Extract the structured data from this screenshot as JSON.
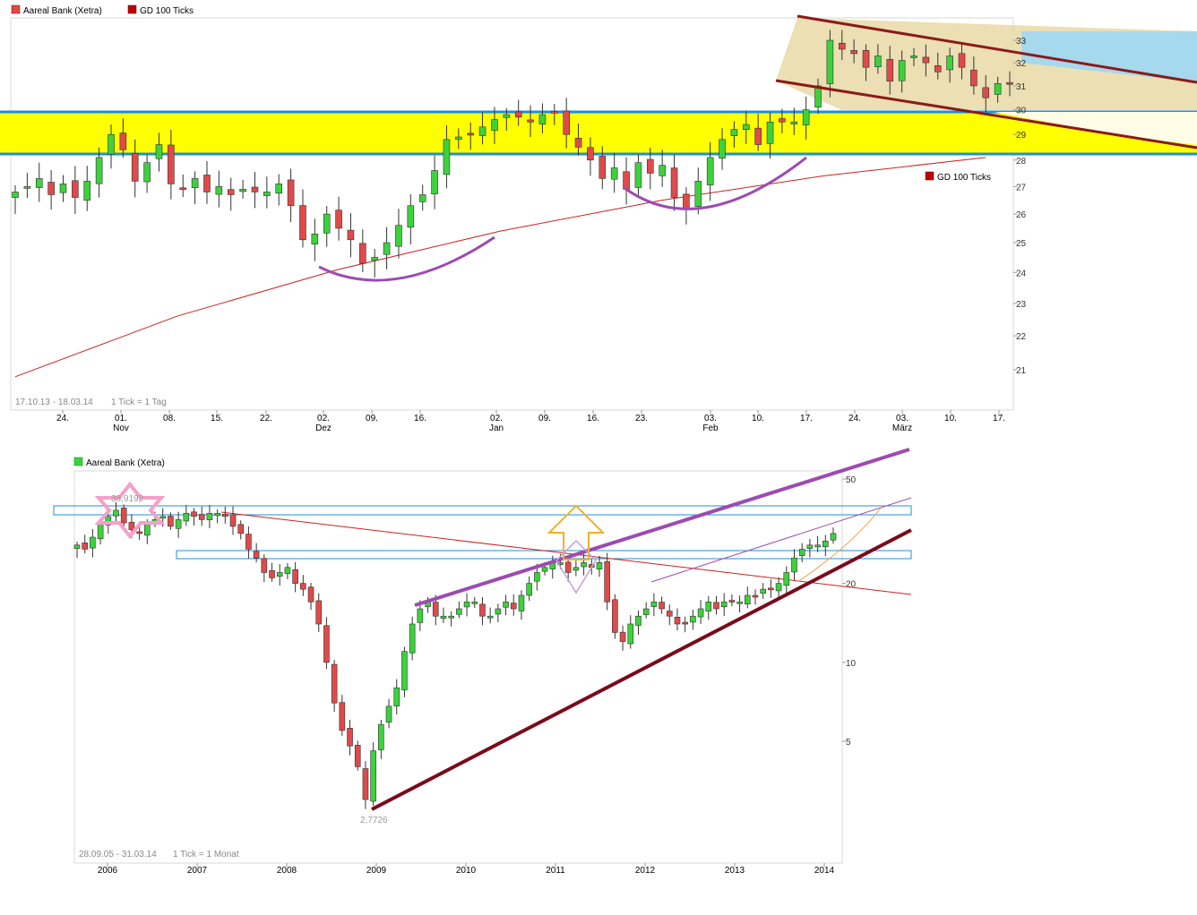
{
  "chart_data": [
    {
      "type": "candlestick",
      "legend": [
        {
          "name": "Aareal Bank (Xetra)",
          "color": "#e04a4a"
        },
        {
          "name": "GD 100 Ticks",
          "color": "#c00000"
        }
      ],
      "secondary_legend": "GD 100 Ticks",
      "date_range": "17.10.13 - 18.03.14",
      "tick_unit": "1 Tick = 1 Tag",
      "y_ticks": [
        "21",
        "22",
        "23",
        "24",
        "25",
        "26",
        "27",
        "28",
        "29",
        "30",
        "31",
        "32",
        "33"
      ],
      "ylim": [
        20,
        33.5
      ],
      "log_scale": true,
      "x_tick_labels": [
        "24.",
        "01.",
        "08.",
        "15.",
        "22.",
        "02.",
        "09.",
        "16.",
        "02.",
        "09.",
        "16.",
        "23.",
        "03.",
        "10.",
        "17.",
        "24.",
        "03.",
        "10.",
        "17."
      ],
      "x_month_labels": [
        "Nov",
        "Dez",
        "Jan",
        "Feb",
        "März"
      ],
      "support_band": [
        28.2,
        30.0
      ],
      "channel": {
        "upper": [
          33.8,
          31.0
        ],
        "lower": [
          31.6,
          28.3
        ]
      },
      "price_path": [
        26.8,
        27.0,
        27.3,
        26.7,
        27.1,
        26.6,
        27.2,
        28.1,
        29.0,
        28.4,
        27.2,
        27.9,
        28.6,
        27.1,
        26.9,
        27.3,
        26.8,
        27.0,
        26.7,
        26.9,
        26.8,
        26.8,
        27.1,
        26.3,
        25.1,
        25.3,
        26.0,
        25.5,
        25.1,
        24.3,
        24.5,
        25.0,
        25.6,
        26.3,
        26.7,
        27.6,
        28.8,
        28.9,
        29.0,
        29.3,
        29.6,
        29.8,
        29.7,
        29.5,
        29.8,
        29.9,
        29.0,
        28.5,
        28.0,
        27.3,
        27.7,
        26.9,
        27.9,
        27.5,
        27.8,
        26.6,
        26.2,
        27.2,
        28.1,
        28.8,
        29.2,
        29.4,
        28.6,
        29.5,
        29.5,
        29.5,
        30.0,
        31.0,
        33.0,
        32.6,
        32.4,
        31.8,
        32.3,
        31.2,
        32.1,
        32.3,
        32.0,
        31.6,
        32.3,
        31.8,
        31.0,
        30.5,
        31.1,
        31.1
      ],
      "ma_path": [
        20.8,
        22.6,
        24.1,
        25.4,
        26.5,
        27.4,
        28.1
      ]
    },
    {
      "type": "candlestick",
      "legend": [
        {
          "name": "Aareal Bank (Xetra)",
          "color": "#3cd23c"
        }
      ],
      "date_range": "28.09.05 - 31.03.14",
      "tick_unit": "1 Tick = 1 Monat",
      "y_ticks": [
        "5",
        "10",
        "20",
        "50"
      ],
      "log_scale": true,
      "x_tick_labels": [
        "2006",
        "2007",
        "2008",
        "2009",
        "2010",
        "2011",
        "2012",
        "2013",
        "2014"
      ],
      "annotations": {
        "high": "38,9192",
        "low": "2,7726"
      },
      "price_path": [
        28,
        27,
        30,
        34,
        36,
        38,
        34,
        32,
        31,
        34,
        35,
        36,
        33,
        35,
        37,
        36,
        35,
        37,
        37,
        36,
        33,
        31,
        27,
        25,
        22,
        21,
        22,
        23,
        20,
        19,
        17,
        14,
        10,
        7,
        5.5,
        4.8,
        4.0,
        3.0,
        4.6,
        5.8,
        6.8,
        8.0,
        11,
        14,
        16,
        17,
        15,
        15,
        15,
        16,
        17,
        17,
        15,
        15,
        16,
        17,
        16,
        18,
        20,
        22,
        23,
        24,
        24,
        22,
        23,
        24,
        23,
        24,
        17,
        13,
        12,
        14,
        15,
        16,
        17,
        16,
        15,
        14,
        14,
        15,
        16,
        17,
        16,
        17,
        17,
        17,
        18,
        18,
        19,
        19,
        20,
        22,
        25,
        27,
        28,
        28,
        29,
        31
      ],
      "hlines": [
        38.5,
        27.0
      ],
      "trendlines": [
        "support",
        "resistance channel",
        "MA"
      ]
    }
  ]
}
